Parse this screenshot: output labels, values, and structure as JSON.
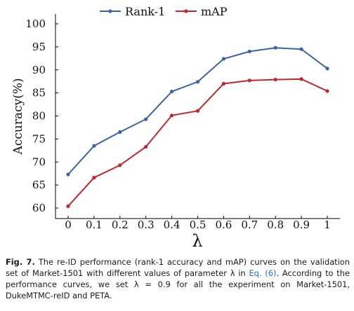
{
  "chart_data": {
    "type": "line",
    "x": [
      0,
      0.1,
      0.2,
      0.3,
      0.4,
      0.5,
      0.6,
      0.7,
      0.8,
      0.9,
      1
    ],
    "xticks": [
      "0",
      "0.1",
      "0.2",
      "0.3",
      "0.4",
      "0.5",
      "0.6",
      "0.7",
      "0.8",
      "0.9",
      "1"
    ],
    "xlabel": "λ",
    "ylabel": "Accuracy(%)",
    "ylim": [
      60,
      100
    ],
    "yticks": [
      "60",
      "65",
      "70",
      "75",
      "80",
      "85",
      "90",
      "95",
      "100"
    ],
    "grid": false,
    "legend_position": "top",
    "series": [
      {
        "name": "Rank-1",
        "color": "#3a64a6",
        "values": [
          67.3,
          73.5,
          76.5,
          79.3,
          85.3,
          87.4,
          92.4,
          94.0,
          94.8,
          94.5,
          90.3
        ]
      },
      {
        "name": "mAP",
        "color": "#c0272d",
        "values": [
          60.4,
          66.6,
          69.3,
          73.3,
          80.1,
          81.1,
          87.0,
          87.7,
          87.9,
          88.0,
          85.4
        ]
      }
    ]
  },
  "caption": {
    "label": "Fig. 7.",
    "text_before_link": " The re-ID performance (rank-1 accuracy and mAP) curves on the validation set of Market-1501 with different values of parameter λ in ",
    "link": "Eq. (6)",
    "text_after_link": ". According to the performance curves, we set λ = 0.9 for all the experiment on Market-1501, DukeMTMC-reID and PETA."
  }
}
